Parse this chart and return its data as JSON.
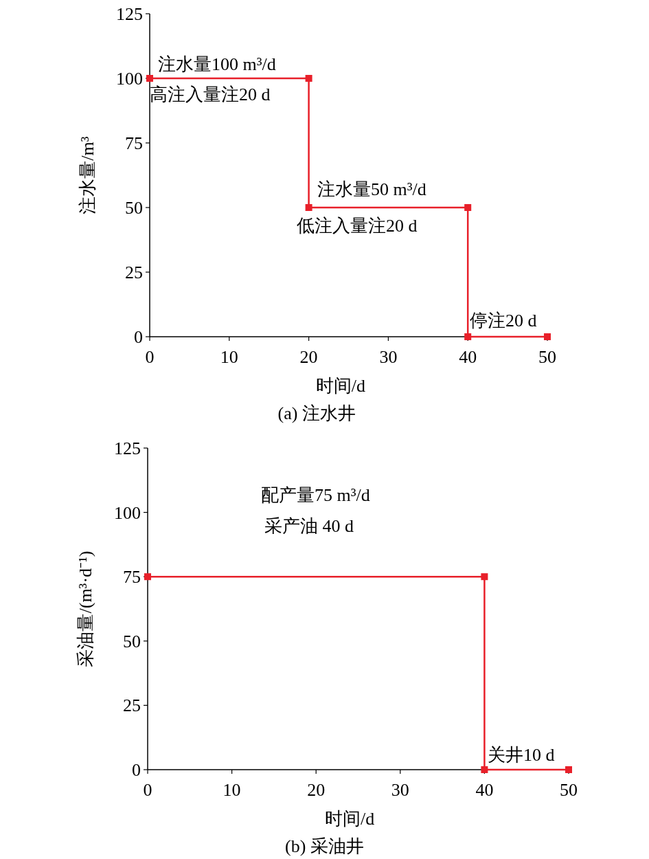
{
  "chart_data": [
    {
      "type": "line",
      "xlabel": "时间/d",
      "ylabel": "注水量/m³",
      "x": [
        0,
        20,
        20,
        40,
        40,
        50
      ],
      "values": [
        100,
        100,
        50,
        50,
        0,
        0
      ],
      "color": "#e8202a",
      "marker": "square",
      "line_style": "solid",
      "xlim": [
        0,
        50
      ],
      "ylim": [
        0,
        125
      ],
      "xticks": [
        0,
        10,
        20,
        30,
        40,
        50
      ],
      "yticks": [
        0,
        25,
        50,
        75,
        100,
        125
      ],
      "annotations": [
        "注水量100 m³/d",
        "高注入量注20 d",
        "注水量50 m³/d",
        "低注入量注20 d",
        "停注20 d",
        "(a) 注水井"
      ]
    },
    {
      "type": "line",
      "xlabel": "时间/d",
      "ylabel": "采油量/(m³·d⁻¹)",
      "x": [
        0,
        40,
        40,
        50
      ],
      "values": [
        75,
        75,
        0,
        0
      ],
      "color": "#e8202a",
      "marker": "square",
      "line_style": "solid",
      "xlim": [
        0,
        50
      ],
      "ylim": [
        0,
        125
      ],
      "xticks": [
        0,
        10,
        20,
        30,
        40,
        50
      ],
      "yticks": [
        0,
        25,
        50,
        75,
        100,
        125
      ],
      "annotations": [
        "配产量75 m³/d",
        "采产油 40 d",
        "关井10 d",
        "(b) 采油井"
      ]
    }
  ]
}
